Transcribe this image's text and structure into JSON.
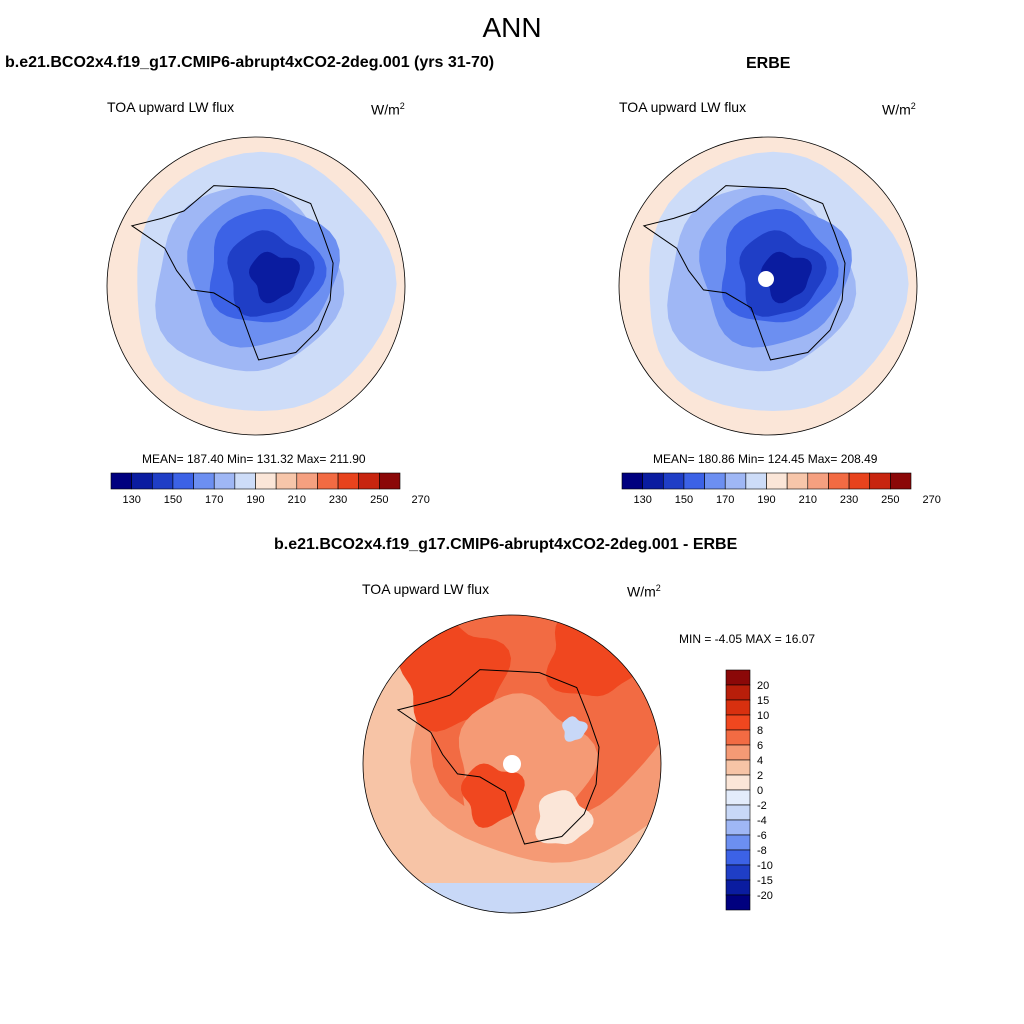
{
  "page": {
    "title": "ANN"
  },
  "panels": [
    {
      "title": "b.e21.BCO2x4.f19_g17.CMIP6-abrupt4xCO2-2deg.001 (yrs 31-70)",
      "variable": "TOA upward LW flux",
      "units": "W/m",
      "units_exp": "2",
      "stats": "MEAN= 187.40  Min= 131.32  Max= 211.90",
      "colorbar_ticks": [
        "130",
        "150",
        "170",
        "190",
        "210",
        "230",
        "250",
        "270"
      ]
    },
    {
      "title": "ERBE",
      "variable": "TOA upward LW flux",
      "units": "W/m",
      "units_exp": "2",
      "stats": "MEAN= 180.86  Min= 124.45  Max= 208.49",
      "colorbar_ticks": [
        "130",
        "150",
        "170",
        "190",
        "210",
        "230",
        "250",
        "270"
      ]
    },
    {
      "title": "b.e21.BCO2x4.f19_g17.CMIP6-abrupt4xCO2-2deg.001 - ERBE",
      "variable": "TOA upward LW flux",
      "units": "W/m",
      "units_exp": "2",
      "stats": "MIN =  -4.05 MAX =  16.07",
      "colorbar_ticks": [
        "20",
        "15",
        "10",
        "8",
        "6",
        "4",
        "2",
        "0",
        "-2",
        "-4",
        "-6",
        "-8",
        "-10",
        "-15",
        "-20"
      ]
    }
  ],
  "colors": {
    "abs_scale": [
      "#00007f",
      "#0a1ca0",
      "#1f3ec6",
      "#3c62e6",
      "#6c8ff1",
      "#9fb7f5",
      "#cddcf8",
      "#fbe6d8",
      "#f7c6aa",
      "#f5a080",
      "#f26b43",
      "#e8431d",
      "#c8250f",
      "#8b0808"
    ],
    "diff_scale": [
      "#8b0808",
      "#b81e0a",
      "#d8300f",
      "#f0471f",
      "#f26b43",
      "#f59a75",
      "#f7c4a6",
      "#fbe6d8",
      "#e3ecfb",
      "#c8d8f7",
      "#9fb7f5",
      "#6c8ff1",
      "#3c62e6",
      "#1f3ec6",
      "#0a1ca0",
      "#00007f"
    ],
    "coastline": "#000000",
    "missing": "#ffffff"
  }
}
